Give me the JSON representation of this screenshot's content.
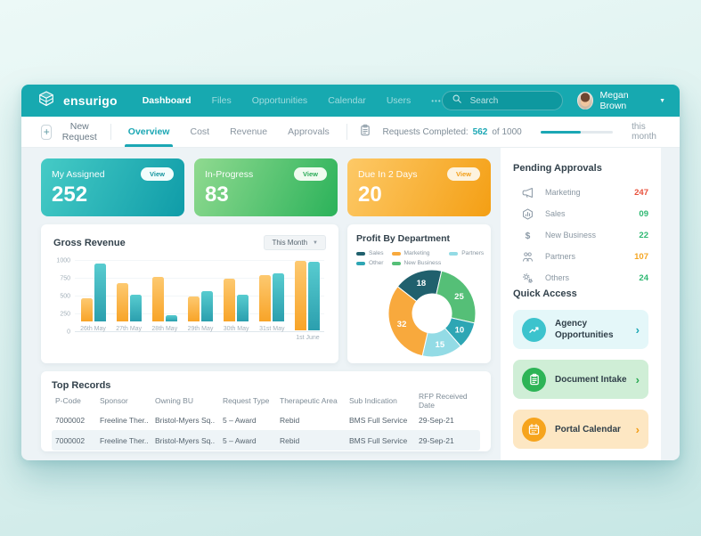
{
  "theme": {
    "teal": "#17a9b0",
    "teal_dark": "#0e989f",
    "accent": "#1ba7b4",
    "red": "#e8513c",
    "green": "#2eb872",
    "orange": "#f5a623",
    "text_dark": "#33424c",
    "text_gray": "#8a97a2",
    "content_bg": "#edf3f6"
  },
  "header": {
    "brand": "ensurigo",
    "nav_items": [
      {
        "label": "Dashboard",
        "active": true
      },
      {
        "label": "Files",
        "active": false
      },
      {
        "label": "Opportunities",
        "active": false
      },
      {
        "label": "Calendar",
        "active": false
      },
      {
        "label": "Users",
        "active": false
      },
      {
        "label": "•••",
        "active": false,
        "more": true
      }
    ],
    "search_placeholder": "Search",
    "user_name": "Megan Brown"
  },
  "toolbar": {
    "new_request_label": "New Request",
    "tabs": [
      {
        "label": "Overview",
        "active": true
      },
      {
        "label": "Cost",
        "active": false
      },
      {
        "label": "Revenue",
        "active": false
      },
      {
        "label": "Approvals",
        "active": false
      }
    ],
    "requests_label": "Requests Completed:",
    "requests_completed": "562",
    "requests_total_suffix": "of 1000",
    "progress_percent": 56.2,
    "period_label": "this month"
  },
  "summary_cards": [
    {
      "title": "My Assigned",
      "value": "252",
      "button": "View",
      "gradient": [
        "#46cbc6",
        "#0f9ca8"
      ],
      "button_bg": "#f2fdfc",
      "button_color": "#12949e"
    },
    {
      "title": "In-Progress",
      "value": "83",
      "button": "View",
      "gradient": [
        "#90da90",
        "#2bb25a"
      ],
      "button_bg": "#f0fbf0",
      "button_color": "#2aab57"
    },
    {
      "title": "Due In 2 Days",
      "value": "20",
      "button": "View",
      "gradient": [
        "#fdc967",
        "#f49f14"
      ],
      "button_bg": "#fdf3df",
      "button_color": "#f29d16"
    }
  ],
  "chart_data": [
    {
      "name": "gross_revenue",
      "type": "bar",
      "title": "Gross Revenue",
      "filter_label": "This Month",
      "categories": [
        "26th May",
        "27th May",
        "28th May",
        "29th May",
        "30th May",
        "31st May",
        "1st June"
      ],
      "series": [
        {
          "name": "series-orange",
          "color_top": "#fdc970",
          "color_bottom": "#f8a428",
          "values": [
            320,
            540,
            630,
            350,
            600,
            650,
            975
          ]
        },
        {
          "name": "series-teal",
          "color_top": "#58ccd0",
          "color_bottom": "#2b9fae",
          "values": [
            810,
            380,
            90,
            420,
            370,
            680,
            965
          ]
        }
      ],
      "yticks": [
        0,
        250,
        500,
        750,
        1000
      ],
      "ylim": [
        0,
        1000
      ],
      "grid": true,
      "legend_position": "none"
    },
    {
      "name": "profit_by_department",
      "type": "pie",
      "title": "Profit By Department",
      "legend_order": [
        "Sales",
        "Marketing",
        "Partners",
        "Other",
        "New Business"
      ],
      "slices": [
        {
          "label": "Sales",
          "value": 18,
          "color": "#20606d"
        },
        {
          "label": "New Business",
          "value": 25,
          "color": "#55bf77"
        },
        {
          "label": "Other",
          "value": 10,
          "color": "#2ea6b4"
        },
        {
          "label": "Partners",
          "value": 15,
          "color": "#93dbe5"
        },
        {
          "label": "Marketing",
          "value": 32,
          "color": "#f8a93d"
        }
      ],
      "start_angle_deg": -52,
      "donut": true,
      "legend_position": "top"
    }
  ],
  "approvals": {
    "title": "Pending Approvals",
    "items": [
      {
        "icon": "megaphone-icon",
        "label": "Marketing",
        "value": "247",
        "value_color": "#e8513c"
      },
      {
        "icon": "sales-chart-icon",
        "label": "Sales",
        "value": "09",
        "value_color": "#2eb872"
      },
      {
        "icon": "dollar-icon",
        "label": "New Business",
        "value": "22",
        "value_color": "#2eb872"
      },
      {
        "icon": "partners-icon",
        "label": "Partners",
        "value": "107",
        "value_color": "#f5a623"
      },
      {
        "icon": "gears-icon",
        "label": "Others",
        "value": "24",
        "value_color": "#2eb872"
      }
    ]
  },
  "quick_access": {
    "title": "Quick Access",
    "items": [
      {
        "label": "Agency Opportunities",
        "icon": "trend-icon",
        "bg": "#e4f7f9",
        "icon_bg": "#3cc3cd",
        "chevron_color": "#1ba7b4"
      },
      {
        "label": "Document Intake",
        "icon": "clipboard-icon",
        "bg": "#cfeed6",
        "icon_bg": "#2db456",
        "chevron_color": "#2aa952"
      },
      {
        "label": "Portal Calendar",
        "icon": "calendar-icon",
        "bg": "#fde7c3",
        "icon_bg": "#f6a41d",
        "chevron_color": "#f29d16"
      }
    ]
  },
  "table": {
    "title": "Top Records",
    "headers": [
      "P-Code",
      "Sponsor",
      "Owning BU",
      "Request Type",
      "Therapeutic Area",
      "Sub Indication",
      "RFP Received Date"
    ],
    "rows": [
      [
        "7000002",
        "Freeline Ther..",
        "Bristol-Myers Sq..",
        "5 – Award",
        "Rebid",
        "BMS Full Service",
        "29-Sep-21"
      ],
      [
        "7000002",
        "Freeline Ther..",
        "Bristol-Myers Sq..",
        "5 – Award",
        "Rebid",
        "BMS Full Service",
        "29-Sep-21"
      ]
    ]
  }
}
